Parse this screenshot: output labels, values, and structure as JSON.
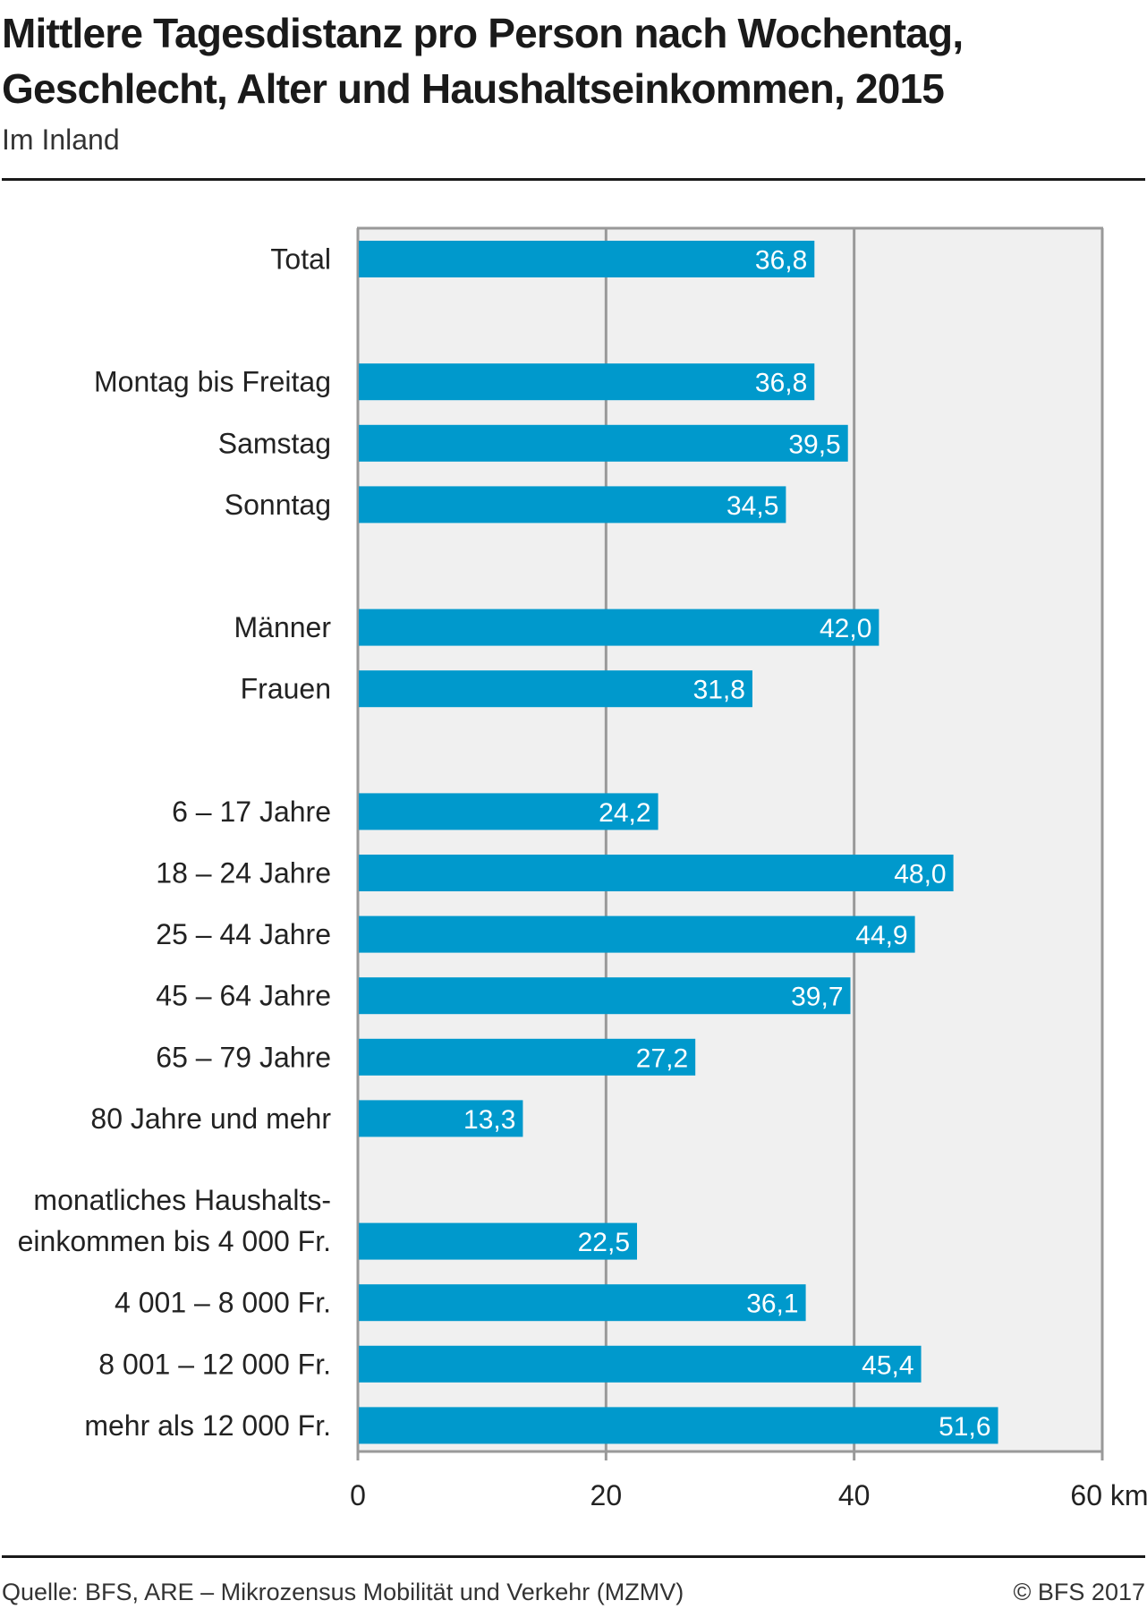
{
  "header": {
    "title": "Mittlere Tagesdistanz pro Person nach Wochentag, Geschlecht, Alter und Haushaltseinkommen, 2015",
    "subtitle": "Im Inland"
  },
  "footer": {
    "source": "Quelle: BFS, ARE – Mikrozensus Mobilität und Verkehr (MZMV)",
    "copyright": "© BFS 2017"
  },
  "colors": {
    "bar": "#0099cc",
    "plot_background": "#f0f0f0",
    "grid": "#999999"
  },
  "chart_data": {
    "type": "bar",
    "orientation": "horizontal",
    "title": "Mittlere Tagesdistanz pro Person nach Wochentag, Geschlecht, Alter und Haushaltseinkommen, 2015",
    "subtitle": "Im Inland",
    "xlabel": "km",
    "xlim": [
      0,
      60
    ],
    "xticks": [
      0,
      20,
      40,
      60
    ],
    "xtick_labels": [
      "0",
      "20",
      "40",
      "60 km"
    ],
    "grid": true,
    "categories": [
      {
        "label": [
          "Total"
        ],
        "value": 36.8,
        "value_label": "36,8",
        "group": 0
      },
      {
        "label": [
          "Montag bis Freitag"
        ],
        "value": 36.8,
        "value_label": "36,8",
        "group": 1
      },
      {
        "label": [
          "Samstag"
        ],
        "value": 39.5,
        "value_label": "39,5",
        "group": 1
      },
      {
        "label": [
          "Sonntag"
        ],
        "value": 34.5,
        "value_label": "34,5",
        "group": 1
      },
      {
        "label": [
          "Männer"
        ],
        "value": 42.0,
        "value_label": "42,0",
        "group": 2
      },
      {
        "label": [
          "Frauen"
        ],
        "value": 31.8,
        "value_label": "31,8",
        "group": 2
      },
      {
        "label": [
          "6 – 17 Jahre"
        ],
        "value": 24.2,
        "value_label": "24,2",
        "group": 3
      },
      {
        "label": [
          "18 – 24 Jahre"
        ],
        "value": 48.0,
        "value_label": "48,0",
        "group": 3
      },
      {
        "label": [
          "25 – 44 Jahre"
        ],
        "value": 44.9,
        "value_label": "44,9",
        "group": 3
      },
      {
        "label": [
          "45 – 64 Jahre"
        ],
        "value": 39.7,
        "value_label": "39,7",
        "group": 3
      },
      {
        "label": [
          "65 – 79 Jahre"
        ],
        "value": 27.2,
        "value_label": "27,2",
        "group": 3
      },
      {
        "label": [
          "80 Jahre und mehr"
        ],
        "value": 13.3,
        "value_label": "13,3",
        "group": 3
      },
      {
        "label": [
          "monatliches Haushalts-",
          "einkommen bis 4 000 Fr."
        ],
        "value": 22.5,
        "value_label": "22,5",
        "group": 4
      },
      {
        "label": [
          "4 001 – 8 000 Fr."
        ],
        "value": 36.1,
        "value_label": "36,1",
        "group": 4
      },
      {
        "label": [
          "8 001 – 12 000 Fr."
        ],
        "value": 45.4,
        "value_label": "45,4",
        "group": 4
      },
      {
        "label": [
          "mehr als 12 000 Fr."
        ],
        "value": 51.6,
        "value_label": "51,6",
        "group": 4
      }
    ]
  }
}
